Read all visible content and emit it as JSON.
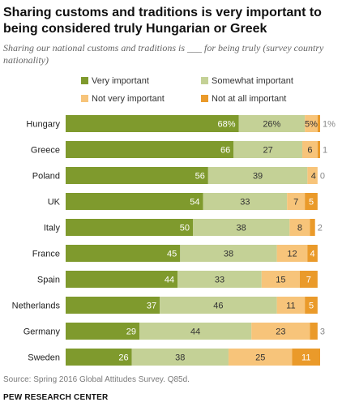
{
  "title": "Sharing customs and traditions is very important to being considered truly Hungarian or Greek",
  "subtitle": "Sharing our national customs and traditions is ___ for being truly (survey country nationality)",
  "source": "Source: Spring 2016 Global Attitudes Survey. Q85d.",
  "org": "PEW RESEARCH CENTER",
  "colors": {
    "very_important": "#7f9a2d",
    "somewhat_important": "#c4d196",
    "not_very_important": "#f7c47a",
    "not_at_all_important": "#ea9a2a"
  },
  "chart_data": {
    "type": "bar",
    "orientation": "horizontal",
    "stacked": true,
    "categories": [
      "Hungary",
      "Greece",
      "Poland",
      "UK",
      "Italy",
      "France",
      "Spain",
      "Netherlands",
      "Germany",
      "Sweden"
    ],
    "series": [
      {
        "name": "Very important",
        "values": [
          68,
          66,
          56,
          54,
          50,
          45,
          44,
          37,
          29,
          26
        ]
      },
      {
        "name": "Somewhat important",
        "values": [
          26,
          27,
          39,
          33,
          38,
          38,
          33,
          46,
          44,
          38
        ]
      },
      {
        "name": "Not very important",
        "values": [
          5,
          6,
          4,
          7,
          8,
          12,
          15,
          11,
          23,
          25
        ]
      },
      {
        "name": "Not at all important",
        "values": [
          1,
          1,
          0,
          5,
          2,
          4,
          7,
          5,
          3,
          11
        ]
      }
    ],
    "first_row_labels": {
      "very_important": "68%",
      "somewhat_important": "26%",
      "not_very_important": "5%",
      "not_at_all_important": "1%"
    },
    "legend_position": "top",
    "xlim": [
      0,
      100
    ]
  }
}
